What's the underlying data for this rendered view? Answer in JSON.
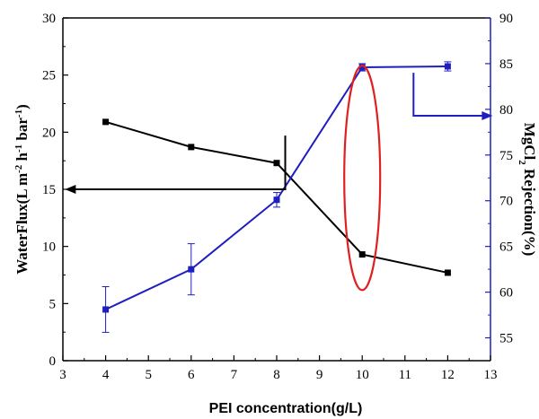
{
  "chart_data": {
    "type": "line",
    "xlabel": "PEI concentration(g/L)",
    "x_ticks": [
      3,
      4,
      5,
      6,
      7,
      8,
      9,
      10,
      11,
      12,
      13
    ],
    "xlim": [
      3,
      13
    ],
    "y_left": {
      "label": "WaterFlux(L m-2 h-1 bar-1)",
      "label_parts": [
        "WaterFlux(L m",
        "-2",
        " h",
        "-1",
        " bar",
        "-1",
        ")"
      ],
      "ylim": [
        0,
        30
      ],
      "ticks": [
        0,
        5,
        10,
        15,
        20,
        25,
        30
      ],
      "color": "#000000"
    },
    "y_right": {
      "label": "MgCl2 Rejection(%)",
      "label_parts": [
        "MgCl",
        "2",
        " Rejection(%)"
      ],
      "ylim": [
        52.5,
        90
      ],
      "ticks": [
        55,
        60,
        65,
        70,
        75,
        80,
        85,
        90
      ],
      "color": "#1f1fbf"
    },
    "series": [
      {
        "axis": "left",
        "color": "#000000",
        "marker": "square",
        "x": [
          4,
          6,
          8,
          10,
          12
        ],
        "y": [
          20.9,
          18.7,
          17.3,
          9.3,
          7.7
        ]
      },
      {
        "axis": "right",
        "color": "#1f1fbf",
        "marker": "square",
        "x": [
          4,
          6,
          8,
          10,
          12
        ],
        "y": [
          58.1,
          62.5,
          70.1,
          84.6,
          84.7
        ],
        "err": [
          2.5,
          2.8,
          0.8,
          0.4,
          0.5
        ]
      }
    ],
    "annotations": {
      "highlight_ellipse": {
        "x": 10,
        "y_left": 16,
        "color": "#e02020"
      },
      "left_arrow": {
        "from_x": 8.2,
        "from_y_left": 19.7,
        "to_x": 3.05,
        "to_y_left": 15.0,
        "color": "#000000"
      },
      "right_arrow": {
        "from_x": 11.2,
        "from_y_right": 84.0,
        "to_x": 13.05,
        "to_y_right": 79.3,
        "color": "#1f1fbf"
      }
    },
    "grid": false
  }
}
